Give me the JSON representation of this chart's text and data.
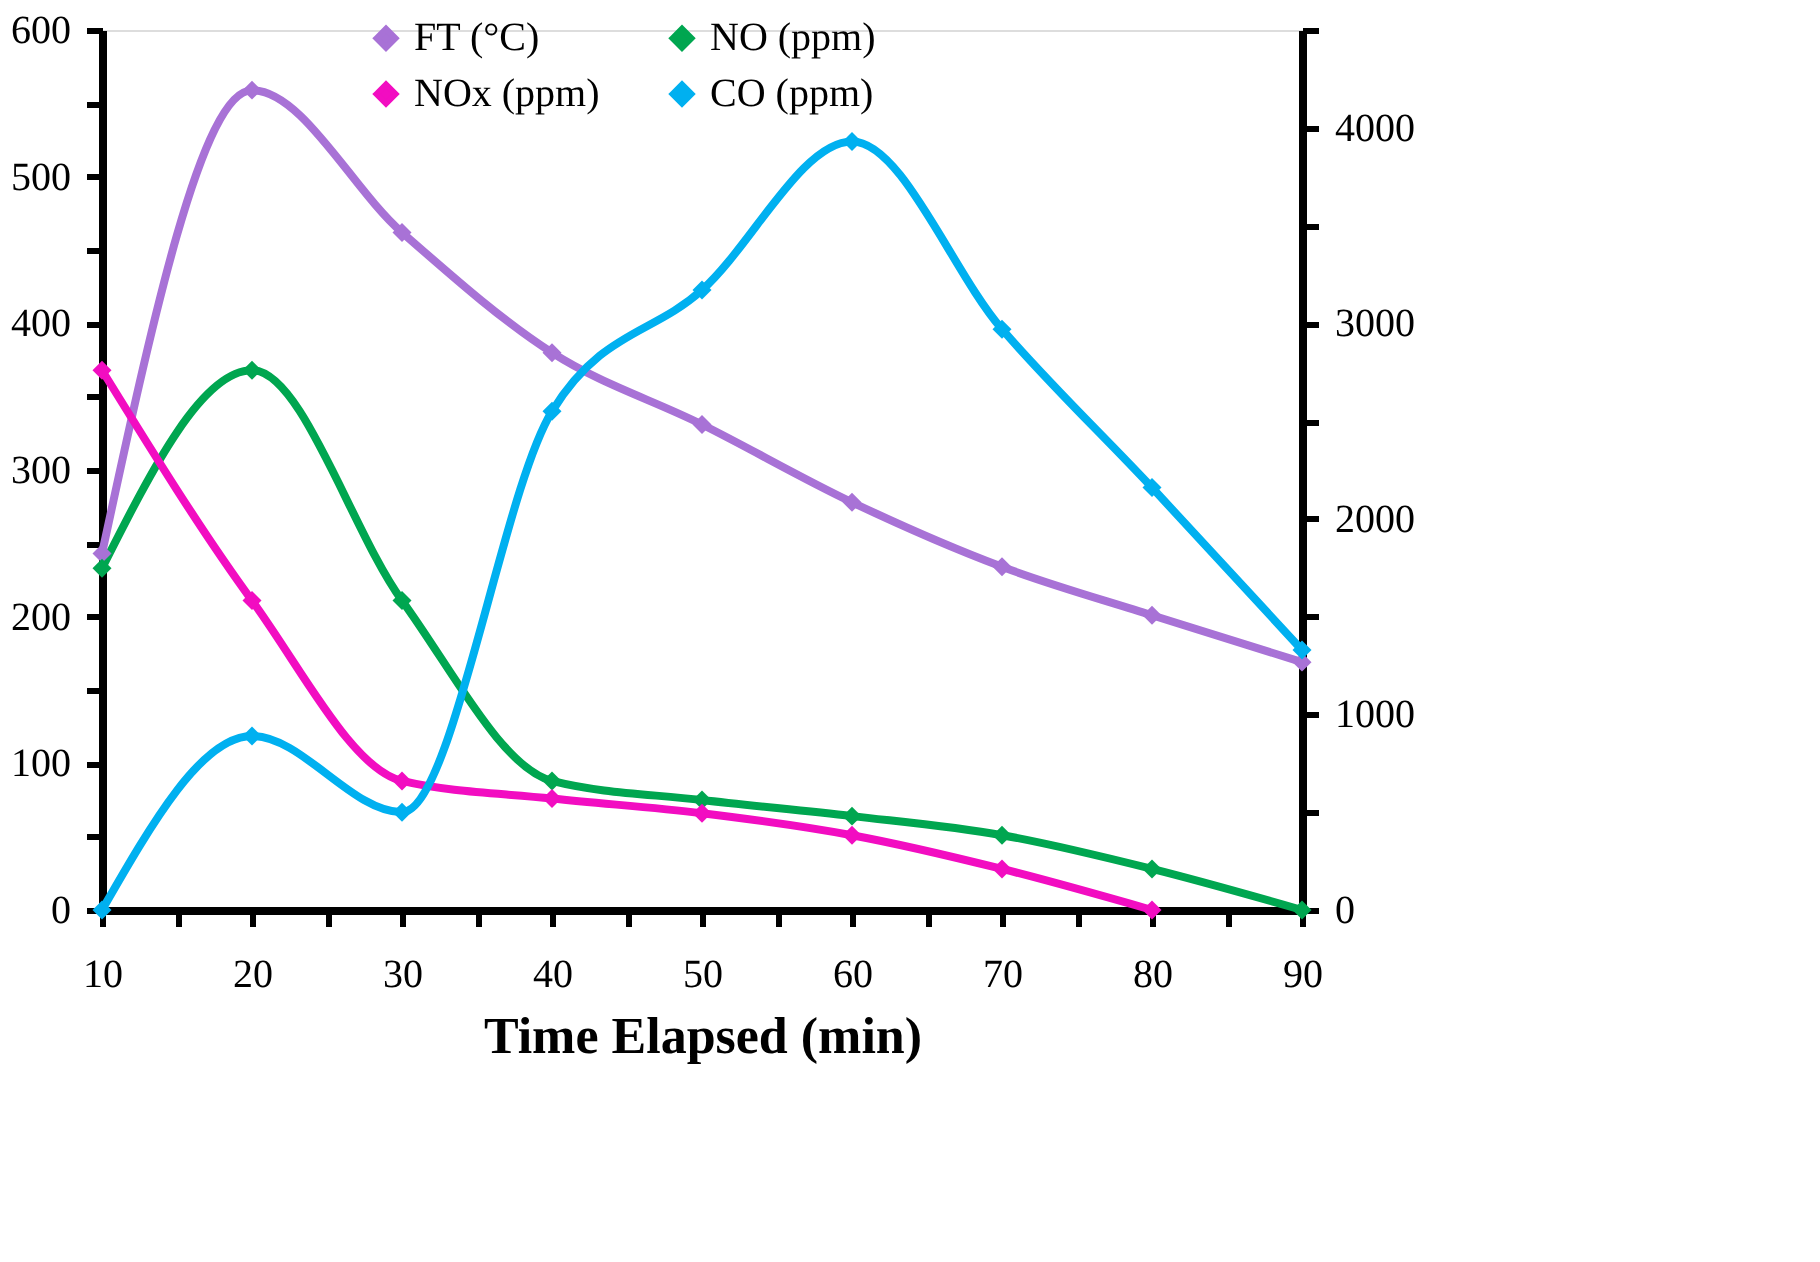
{
  "chart_data": {
    "type": "line",
    "xlabel": "Time Elapsed (min)",
    "x": [
      10,
      20,
      30,
      40,
      50,
      60,
      70,
      80,
      90
    ],
    "xlim": [
      10,
      90
    ],
    "xticks": [
      10,
      {
        "value": 15,
        "label": null
      },
      20,
      {
        "value": 25,
        "label": null
      },
      30,
      {
        "value": 35,
        "label": null
      },
      40,
      {
        "value": 45,
        "label": null
      },
      50,
      {
        "value": 55,
        "label": null
      },
      60,
      {
        "value": 65,
        "label": null
      },
      70,
      {
        "value": 75,
        "label": null
      },
      80,
      {
        "value": 85,
        "label": null
      },
      90
    ],
    "ylim": [
      0,
      600
    ],
    "yticks": [
      0,
      {
        "value": 50,
        "label": null
      },
      100,
      {
        "value": 150,
        "label": null
      },
      200,
      {
        "value": 250,
        "label": null
      },
      300,
      {
        "value": 350,
        "label": null
      },
      400,
      {
        "value": 450,
        "label": null
      },
      500,
      {
        "value": 550,
        "label": null
      },
      600
    ],
    "y2lim": [
      0,
      4500
    ],
    "y2ticks": [
      0,
      {
        "value": 500,
        "label": null
      },
      1000,
      {
        "value": 1500,
        "label": null
      },
      2000,
      {
        "value": 2500,
        "label": null
      },
      3000,
      {
        "value": 3500,
        "label": null
      },
      4000,
      {
        "value": 4500,
        "label": null
      }
    ],
    "series": [
      {
        "name": "FT (°C)",
        "color": "#a872d6",
        "values": [
          243,
          559,
          462,
          380,
          331,
          278,
          234,
          201,
          169
        ]
      },
      {
        "name": "NO (ppm)",
        "color": "#00a650",
        "values": [
          233,
          368,
          211,
          88,
          75,
          64,
          51,
          28,
          0
        ]
      },
      {
        "name": "NOx (ppm)",
        "color": "#f20dc1",
        "values": [
          368,
          211,
          88,
          76,
          66,
          51,
          28,
          0,
          null
        ]
      },
      {
        "name": "CO (ppm)",
        "color": "#00b0f0",
        "axis": "y2",
        "values": [
          0,
          890,
          500,
          2550,
          3170,
          3930,
          2970,
          2160,
          1330
        ]
      }
    ],
    "marker": "diamond",
    "line_style": "solid",
    "grid": false,
    "legend": "top"
  }
}
